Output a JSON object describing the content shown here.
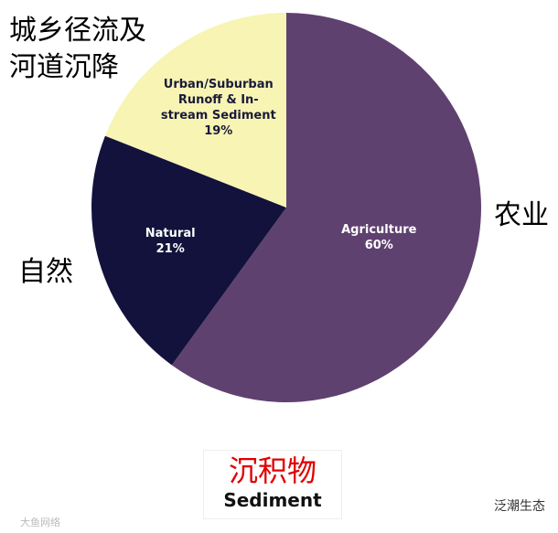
{
  "chart_data": {
    "type": "pie",
    "categories": [
      "Agriculture",
      "Natural",
      "Urban/Suburban Runoff & In-stream Sediment"
    ],
    "values": [
      60,
      21,
      19
    ],
    "value_labels": [
      "60%",
      "21%",
      "19%"
    ],
    "colors": [
      "#5f4170",
      "#12123c",
      "#f7f4b4"
    ],
    "annotations": [
      "农业",
      "自然",
      "城乡径流及河道沉降"
    ],
    "title": "沉积物",
    "subtitle": "Sediment"
  },
  "watermarks": [
    "泛潮生态",
    "大鱼网络"
  ]
}
